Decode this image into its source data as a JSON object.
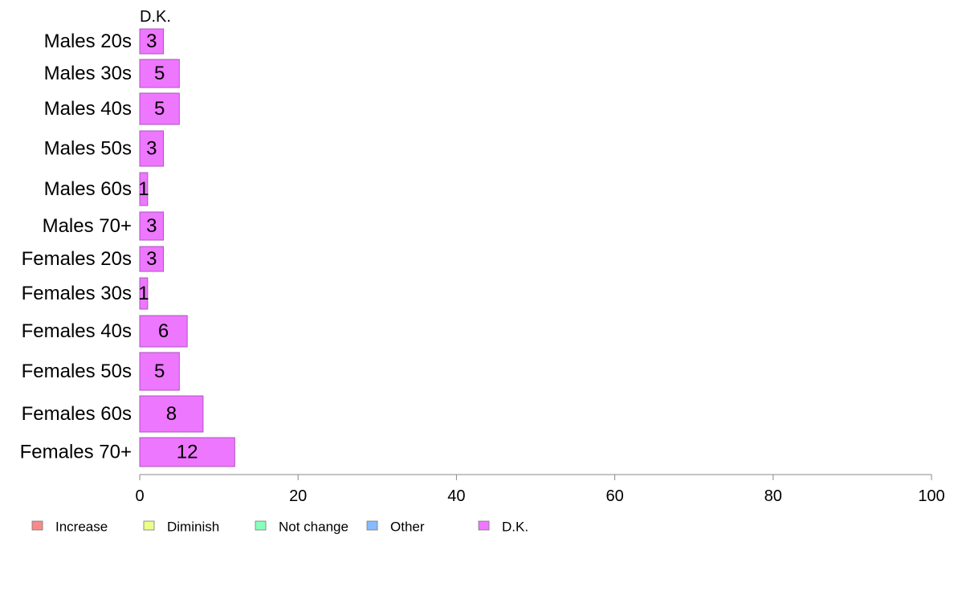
{
  "chart_data": {
    "type": "bar",
    "orientation": "horizontal",
    "stacked": true,
    "categories": [
      "Males 20s",
      "Males 30s",
      "Males 40s",
      "Males 50s",
      "Males 60s",
      "Males 70+",
      "Females 20s",
      "Females 30s",
      "Females 40s",
      "Females 50s",
      "Females 60s",
      "Females 70+"
    ],
    "series": [
      {
        "name": "D.K.",
        "values": [
          3,
          5,
          5,
          3,
          1,
          3,
          3,
          1,
          6,
          5,
          8,
          12
        ],
        "color": "#ee77ff"
      }
    ],
    "series_header": "D.K.",
    "xlim": [
      0,
      100
    ],
    "xticks": [
      0,
      20,
      40,
      60,
      80,
      100
    ],
    "grid": false,
    "legend_position": "bottom-left",
    "legend": [
      {
        "label": "Increase",
        "color": "#f88a8a"
      },
      {
        "label": "Diminish",
        "color": "#eeff88"
      },
      {
        "label": "Not change",
        "color": "#88ffbb"
      },
      {
        "label": "Other",
        "color": "#88bbff"
      },
      {
        "label": "D.K.",
        "color": "#ee77ff"
      }
    ]
  }
}
